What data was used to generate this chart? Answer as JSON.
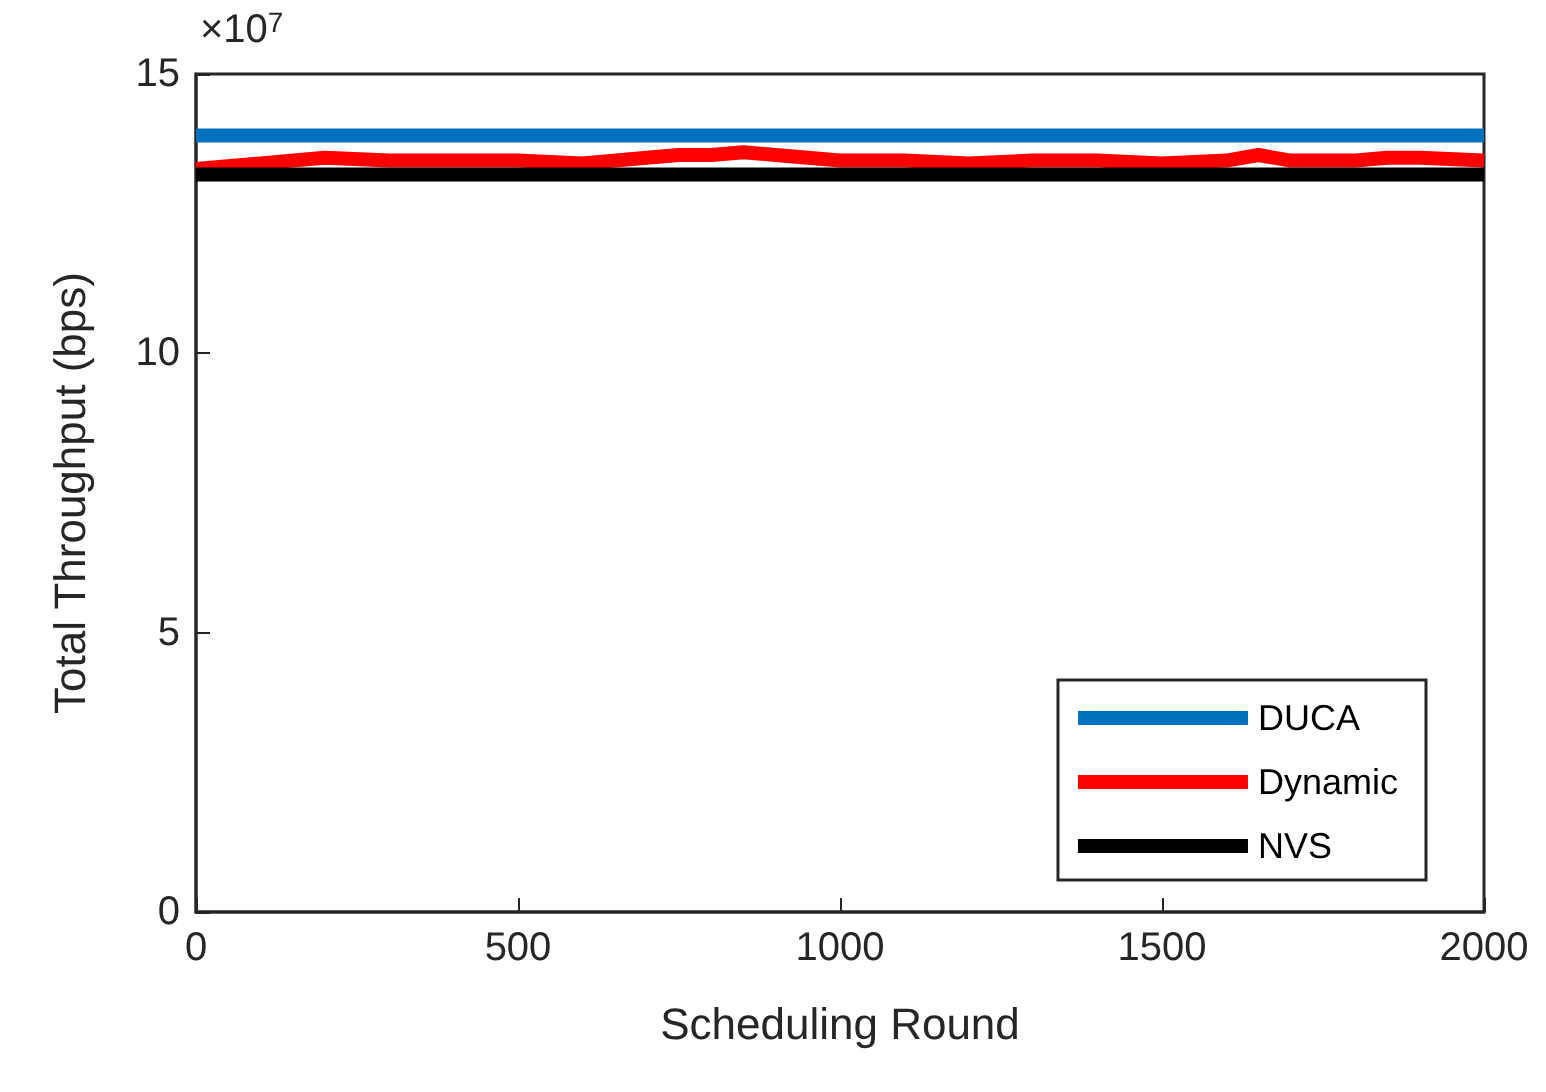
{
  "chart_data": {
    "type": "line",
    "xlabel": "Scheduling Round",
    "ylabel": "Total Throughput (bps)",
    "annotations": [
      "×10$^{7}$"
    ],
    "x": [
      0,
      100,
      200,
      300,
      400,
      500,
      600,
      700,
      750,
      800,
      850,
      900,
      950,
      1000,
      1100,
      1200,
      1300,
      1400,
      1500,
      1600,
      1650,
      1700,
      1800,
      1850,
      1900,
      2000
    ],
    "series": [
      {
        "name": "DUCA",
        "color": "#0072bd",
        "values": [
          13.9,
          13.9,
          13.9,
          13.9,
          13.9,
          13.9,
          13.9,
          13.9,
          13.9,
          13.9,
          13.9,
          13.9,
          13.9,
          13.9,
          13.9,
          13.9,
          13.9,
          13.9,
          13.9,
          13.9,
          13.9,
          13.9,
          13.9,
          13.9,
          13.9,
          13.9
        ]
      },
      {
        "name": "Dynamic",
        "color": "#ff0000",
        "values": [
          13.3,
          13.4,
          13.5,
          13.45,
          13.45,
          13.45,
          13.4,
          13.5,
          13.55,
          13.55,
          13.6,
          13.55,
          13.5,
          13.45,
          13.45,
          13.4,
          13.45,
          13.45,
          13.4,
          13.45,
          13.55,
          13.45,
          13.45,
          13.5,
          13.5,
          13.45
        ]
      },
      {
        "name": "NVS",
        "color": "#000000",
        "values": [
          13.2,
          13.2,
          13.2,
          13.2,
          13.2,
          13.2,
          13.2,
          13.2,
          13.2,
          13.2,
          13.2,
          13.2,
          13.2,
          13.2,
          13.2,
          13.2,
          13.2,
          13.2,
          13.2,
          13.2,
          13.2,
          13.2,
          13.2,
          13.2,
          13.2,
          13.2
        ]
      }
    ],
    "xlim": [
      0,
      2000
    ],
    "xticks": [
      0,
      500,
      1000,
      1500,
      2000
    ],
    "ylim": [
      0,
      15
    ],
    "yticks": [
      0,
      5,
      10,
      15
    ],
    "grid": false,
    "legend": "bottom right",
    "marker": "none",
    "line_style": "solid"
  }
}
